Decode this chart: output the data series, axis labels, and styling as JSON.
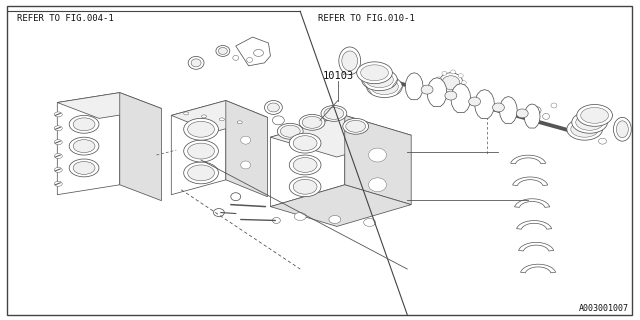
{
  "background_color": "#ffffff",
  "border_color": "#444444",
  "text_color": "#111111",
  "line_color": "#555555",
  "fig_width": 6.4,
  "fig_height": 3.2,
  "dpi": 100,
  "labels": {
    "top_left": "REFER TO FIG.004-1",
    "top_right": "REFER TO FIG.010-1",
    "part_number": "10103",
    "diagram_id": "A003001007"
  },
  "lw": 0.55
}
